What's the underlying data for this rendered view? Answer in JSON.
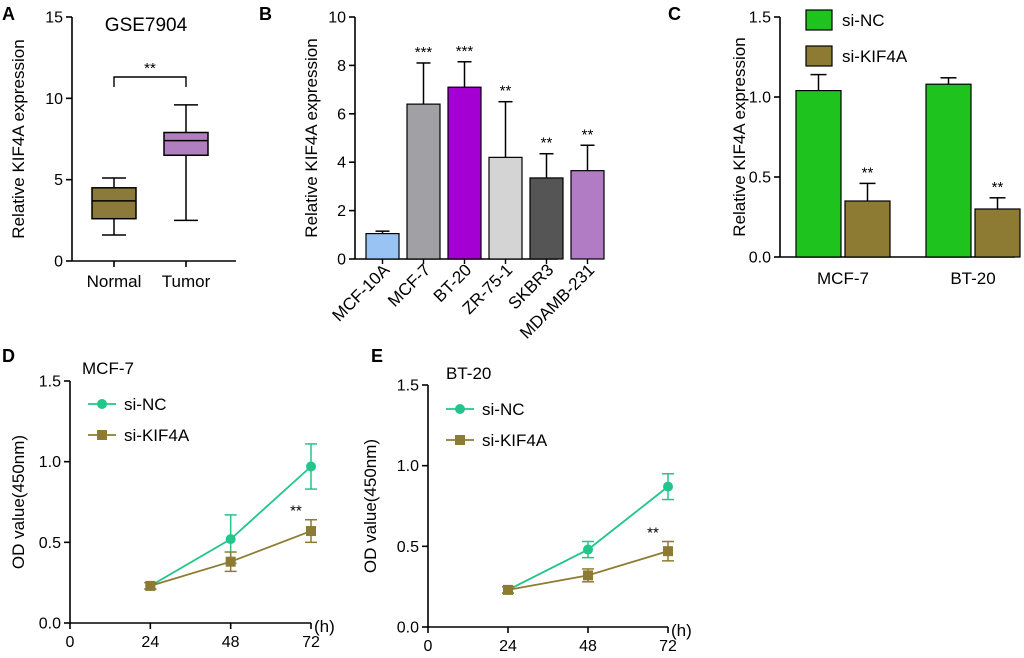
{
  "chart_data": [
    {
      "panel": "A",
      "type": "boxplot",
      "title": "GSE7904",
      "ylabel": "Relative KIF4A expression",
      "ylim": [
        0,
        15
      ],
      "yticks": [
        0,
        5,
        10,
        15
      ],
      "categories": [
        "Normal",
        "Tumor"
      ],
      "boxes": [
        {
          "name": "Normal",
          "min": 1.6,
          "q1": 2.6,
          "median": 3.7,
          "q3": 4.5,
          "max": 5.1,
          "color": "#8b7a3a"
        },
        {
          "name": "Tumor",
          "min": 2.5,
          "q1": 6.5,
          "median": 7.4,
          "q3": 7.9,
          "max": 9.6,
          "color": "#b07fc0"
        }
      ],
      "significance": "**"
    },
    {
      "panel": "B",
      "type": "bar",
      "ylabel": "Relative KIF4A expression",
      "ylim": [
        0,
        10
      ],
      "yticks": [
        0,
        2,
        4,
        6,
        8,
        10
      ],
      "categories": [
        "MCF-10A",
        "MCF-7",
        "BT-20",
        "ZR-75-1",
        "SKBR3",
        "MDAMB-231"
      ],
      "values": [
        1.05,
        6.4,
        7.1,
        4.2,
        3.35,
        3.65
      ],
      "errors": [
        0.1,
        1.7,
        1.05,
        2.3,
        1.0,
        1.05
      ],
      "colors": [
        "#99c3f2",
        "#a0a0a5",
        "#a400d4",
        "#d4d4d4",
        "#555555",
        "#b27cc4"
      ],
      "significance": [
        "",
        "***",
        "***",
        "**",
        "**",
        "**"
      ]
    },
    {
      "panel": "C",
      "type": "bar",
      "ylabel": "Relative KIF4A expression",
      "ylim": [
        0,
        1.5
      ],
      "yticks": [
        "0.0",
        "0.5",
        "1.0",
        "1.5"
      ],
      "categories": [
        "MCF-7",
        "BT-20"
      ],
      "series": [
        {
          "name": "si-NC",
          "values": [
            1.04,
            1.08
          ],
          "errors": [
            0.1,
            0.04
          ],
          "color": "#1ec31e"
        },
        {
          "name": "si-KIF4A",
          "values": [
            0.35,
            0.3
          ],
          "errors": [
            0.11,
            0.07
          ],
          "color": "#8e7b33"
        }
      ],
      "significance": [
        "**",
        "**"
      ]
    },
    {
      "panel": "D",
      "type": "line",
      "title": "MCF-7",
      "ylabel": "OD value(450nm)",
      "xunit": "(h)",
      "xlim": [
        0,
        72
      ],
      "ylim": [
        0,
        1.5
      ],
      "xticks": [
        "0",
        "24",
        "48",
        "72"
      ],
      "yticks": [
        "0.0",
        "0.5",
        "1.0",
        "1.5"
      ],
      "series": [
        {
          "name": "si-NC",
          "marker": "circle",
          "color": "#22c58a",
          "x": [
            24,
            48,
            72
          ],
          "y": [
            0.23,
            0.52,
            0.97
          ],
          "errors": [
            0.02,
            0.15,
            0.14
          ]
        },
        {
          "name": "si-KIF4A",
          "marker": "square",
          "color": "#8e7b33",
          "x": [
            24,
            48,
            72
          ],
          "y": [
            0.23,
            0.38,
            0.57
          ],
          "errors": [
            0.02,
            0.06,
            0.07
          ]
        }
      ],
      "significance": "**"
    },
    {
      "panel": "E",
      "type": "line",
      "title": "BT-20",
      "ylabel": "OD value(450nm)",
      "xunit": "(h)",
      "xlim": [
        0,
        72
      ],
      "ylim": [
        0,
        1.5
      ],
      "xticks": [
        "0",
        "24",
        "48",
        "72"
      ],
      "yticks": [
        "0.0",
        "0.5",
        "1.0",
        "1.5"
      ],
      "series": [
        {
          "name": "si-NC",
          "marker": "circle",
          "color": "#22c58a",
          "x": [
            24,
            48,
            72
          ],
          "y": [
            0.23,
            0.48,
            0.87
          ],
          "errors": [
            0.02,
            0.05,
            0.08
          ]
        },
        {
          "name": "si-KIF4A",
          "marker": "square",
          "color": "#8e7b33",
          "x": [
            24,
            48,
            72
          ],
          "y": [
            0.23,
            0.32,
            0.47
          ],
          "errors": [
            0.02,
            0.04,
            0.06
          ]
        }
      ],
      "significance": "**"
    }
  ]
}
